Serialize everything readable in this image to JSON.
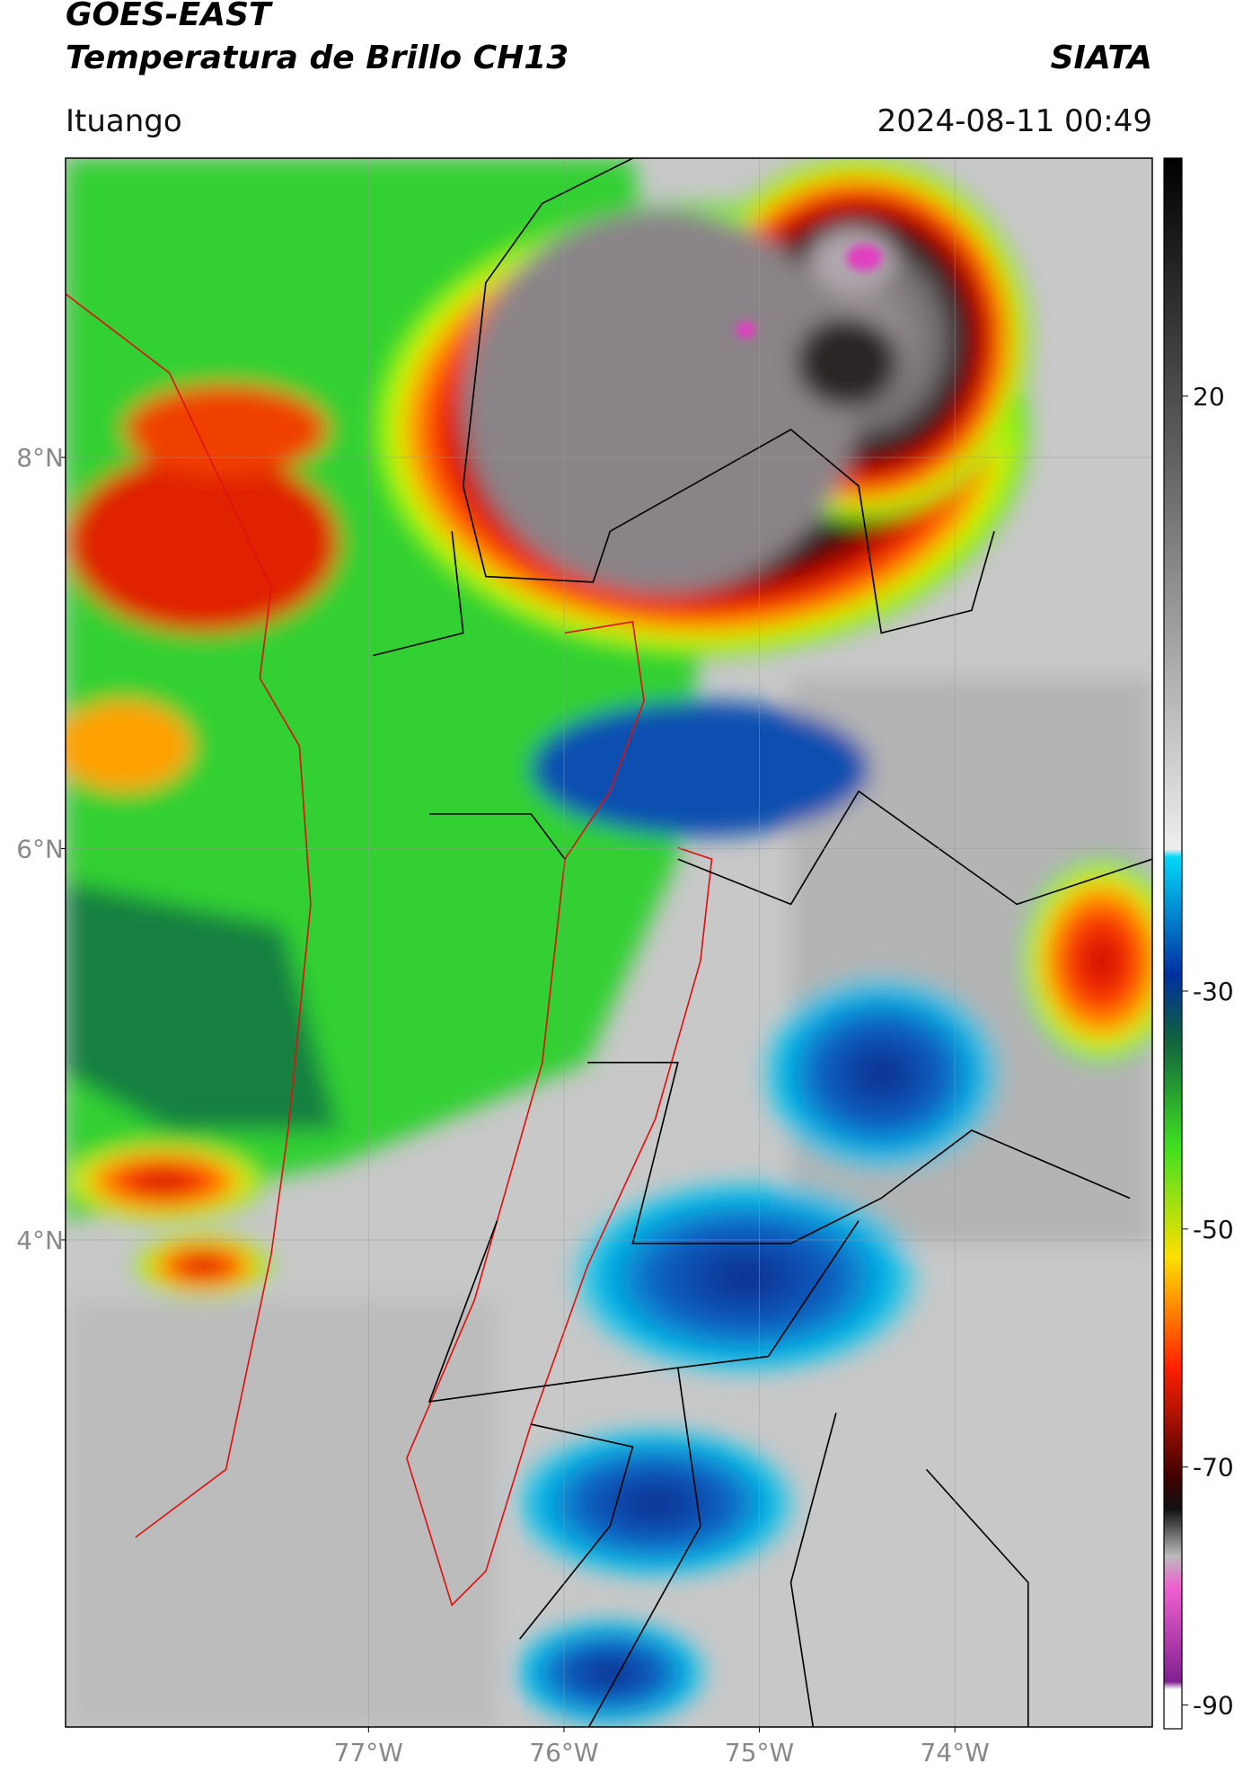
{
  "header": {
    "title": "GOES-EAST",
    "subtitle": "Temperatura de Brillo CH13",
    "source": "SIATA",
    "location": "Ituango",
    "timestamp": "2024-08-11 00:49"
  },
  "map": {
    "xlim": [
      -78.55,
      -72.99
    ],
    "ylim": [
      1.51,
      9.53
    ],
    "xticks": [
      {
        "value": -77,
        "label": "77°W"
      },
      {
        "value": -76,
        "label": "76°W"
      },
      {
        "value": -75,
        "label": "75°W"
      },
      {
        "value": -74,
        "label": "74°W"
      }
    ],
    "yticks": [
      {
        "value": 8,
        "label": "8°N"
      },
      {
        "value": 6,
        "label": "6°N"
      },
      {
        "value": 4,
        "label": "4°N"
      }
    ],
    "grid": true
  },
  "colorbar": {
    "clim": [
      -92,
      40
    ],
    "ticks": [
      20,
      -30,
      -50,
      -70,
      -90
    ]
  }
}
